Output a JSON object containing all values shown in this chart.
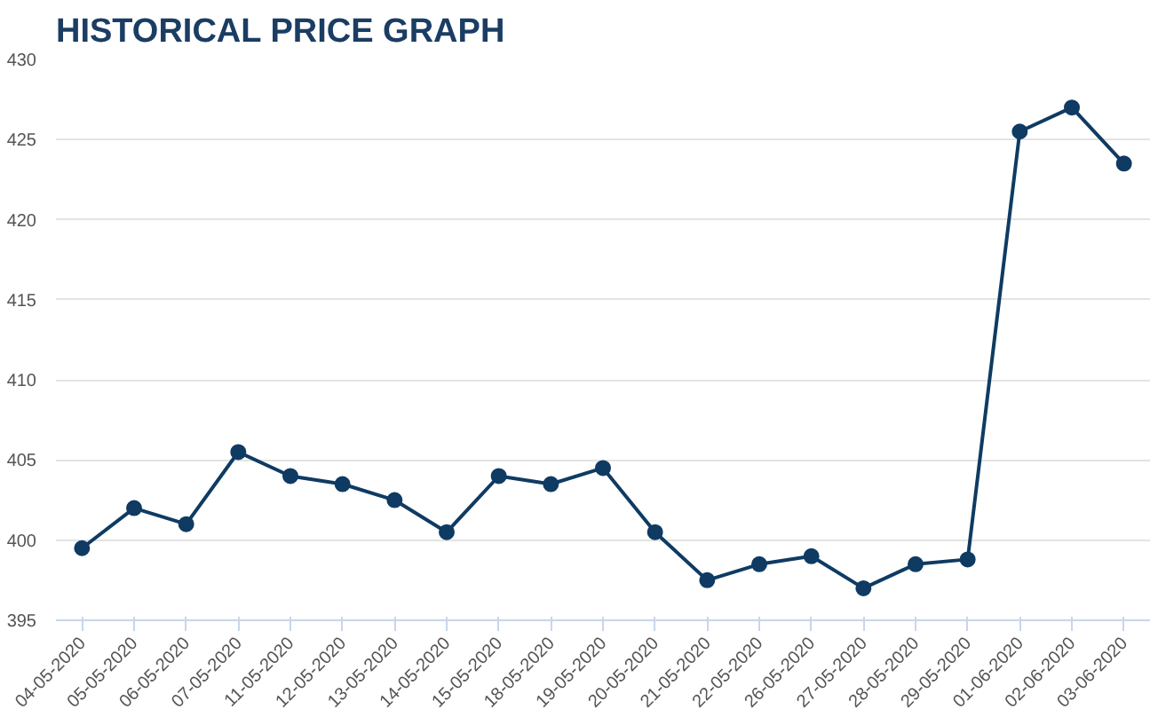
{
  "chart_data": {
    "type": "line",
    "title": "HISTORICAL PRICE GRAPH",
    "categories": [
      "04-05-2020",
      "05-05-2020",
      "06-05-2020",
      "07-05-2020",
      "11-05-2020",
      "12-05-2020",
      "13-05-2020",
      "14-05-2020",
      "15-05-2020",
      "18-05-2020",
      "19-05-2020",
      "20-05-2020",
      "21-05-2020",
      "22-05-2020",
      "26-05-2020",
      "27-05-2020",
      "28-05-2020",
      "29-05-2020",
      "01-06-2020",
      "02-06-2020",
      "03-06-2020"
    ],
    "series": [
      {
        "color": "#0f3b63",
        "values": [
          399.5,
          402,
          401,
          405.5,
          404,
          403.5,
          402.5,
          400.5,
          404,
          403.5,
          404.5,
          400.5,
          397.5,
          398.5,
          399,
          397,
          398.5,
          398.8,
          425.5,
          427,
          423.5
        ]
      }
    ],
    "ylim": [
      395,
      430
    ],
    "yticks": [
      395,
      400,
      405,
      410,
      415,
      420,
      425,
      430
    ],
    "grid": "y",
    "marker": "circle",
    "line_style": "solid"
  }
}
